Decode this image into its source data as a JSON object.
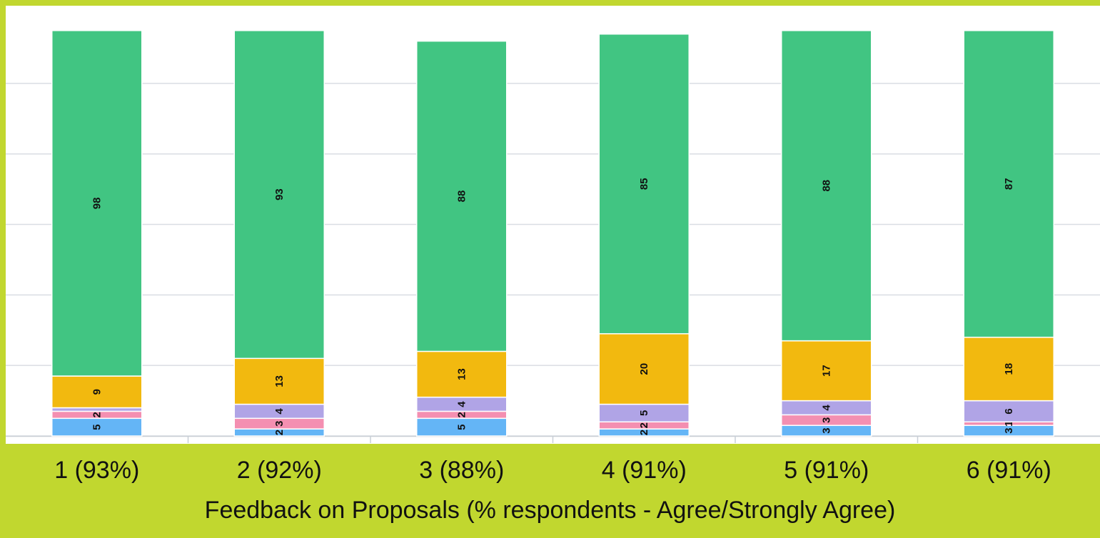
{
  "chart_data": {
    "type": "bar",
    "stacked": true,
    "categories": [
      "1 (93%)",
      "2 (92%)",
      "3 (88%)",
      "4 (91%)",
      "5 (91%)",
      "6 (91%)"
    ],
    "series": [
      {
        "values": [
          5,
          2,
          5,
          2,
          3,
          3
        ],
        "color": "#64b5f6"
      },
      {
        "values": [
          2,
          3,
          2,
          2,
          3,
          1
        ],
        "color": "#f48fb1"
      },
      {
        "values": [
          1,
          4,
          4,
          5,
          4,
          6
        ],
        "color": "#b0a4e6"
      },
      {
        "values": [
          9,
          13,
          13,
          20,
          17,
          18
        ],
        "color": "#f2b90f"
      },
      {
        "values": [
          98,
          93,
          88,
          85,
          88,
          87
        ],
        "color": "#41c582"
      }
    ],
    "segment_labels": [
      [
        "5",
        "2",
        "",
        "9",
        "98"
      ],
      [
        "2",
        "3",
        "4",
        "13",
        "93"
      ],
      [
        "5",
        "2",
        "4",
        "13",
        "88"
      ],
      [
        "2",
        "2",
        "5",
        "20",
        "85"
      ],
      [
        "3",
        "3",
        "4",
        "17",
        "88"
      ],
      [
        "3",
        "1",
        "6",
        "18",
        "87"
      ]
    ],
    "xlabel": "Feedback on Proposals (% respondents - Agree/Strongly Agree)",
    "ylabel": "",
    "ylim": [
      0,
      118
    ],
    "grid": true,
    "legend": "none"
  }
}
